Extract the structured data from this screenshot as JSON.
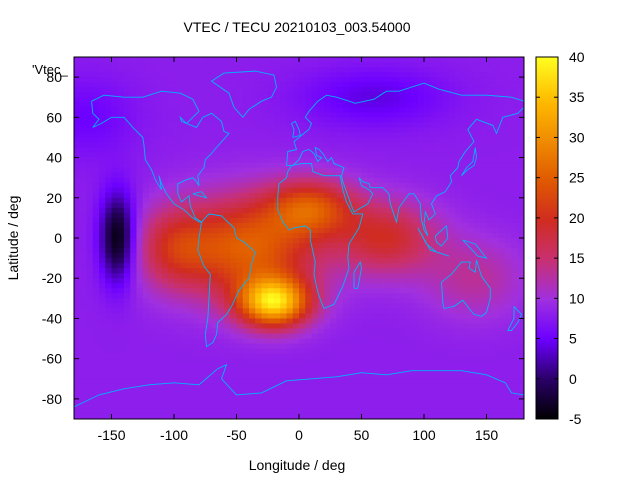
{
  "chart_data": {
    "type": "heatmap",
    "title": "VTEC / TECU 20210103_003.54000",
    "xlabel": "Longitude / deg",
    "ylabel": "Latitude / deg",
    "xlim": [
      -180,
      180
    ],
    "ylim": [
      -90,
      90
    ],
    "x_ticks": [
      -150,
      -100,
      -50,
      0,
      50,
      100,
      150
    ],
    "y_ticks": [
      -80,
      -60,
      -40,
      -20,
      0,
      20,
      40,
      60,
      80
    ],
    "colorbar": {
      "min": -5,
      "max": 40,
      "ticks": [
        -5,
        0,
        5,
        10,
        15,
        20,
        25,
        30,
        35,
        40
      ],
      "palette": "black-purple-red-orange-yellow"
    },
    "legend": {
      "label": "'Vtec_",
      "placement": "top-left"
    },
    "grid": false,
    "features": [
      {
        "name": "equatorial-anomaly-peak",
        "lon": -25,
        "lat": -35,
        "value": 37
      },
      {
        "name": "african-equatorial-crest",
        "lon": 0,
        "lat": 15,
        "value": 22
      },
      {
        "name": "pacific-minimum",
        "lon": -145,
        "lat": 0,
        "value": -4
      },
      {
        "name": "indian-ocean-crest",
        "lon": 70,
        "lat": 0,
        "value": 18
      }
    ]
  }
}
